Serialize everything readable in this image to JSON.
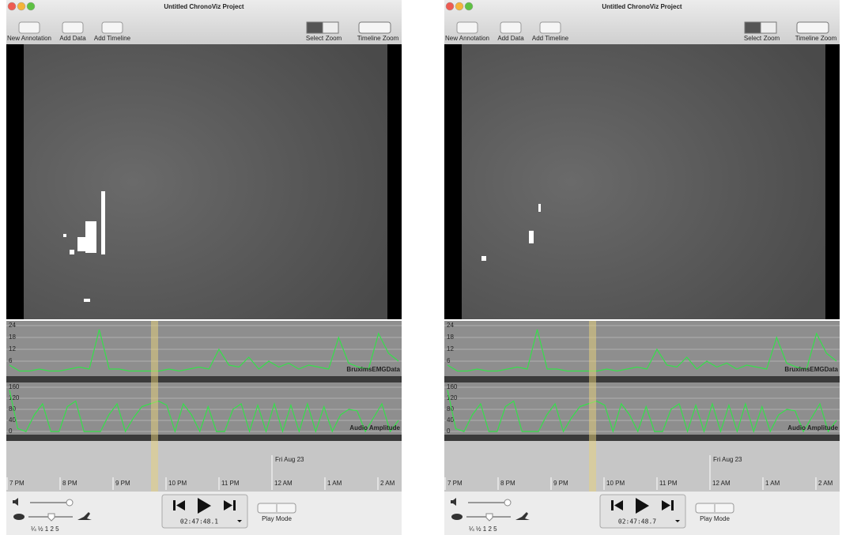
{
  "app": {
    "title": "Untitled ChronoViz Project",
    "toolbar": {
      "left": [
        "New Annotation",
        "Add Data",
        "Add Timeline"
      ],
      "right": [
        "Select",
        "Zoom",
        "Timeline Zoom"
      ]
    },
    "emg_track": {
      "name": "BruximsEMGData",
      "ylim": [
        0,
        24
      ],
      "yticks": [
        24,
        18,
        12,
        6
      ],
      "values": [
        4,
        1,
        1,
        2,
        1,
        1,
        2,
        3,
        2,
        22,
        2,
        2,
        1,
        1,
        1,
        1,
        2,
        1,
        2,
        3,
        2,
        12,
        4,
        3,
        8,
        2,
        6,
        3,
        5,
        2,
        4,
        3,
        2,
        18,
        5,
        3,
        2,
        20,
        10,
        6
      ]
    },
    "audio_track": {
      "name": "Audio Amplitude",
      "ylim": [
        0,
        160
      ],
      "yticks": [
        160,
        120,
        80,
        40,
        0
      ],
      "values": [
        150,
        10,
        0,
        60,
        100,
        0,
        0,
        90,
        110,
        0,
        0,
        0,
        60,
        100,
        0,
        50,
        90,
        100,
        110,
        95,
        0,
        100,
        60,
        0,
        90,
        0,
        0,
        80,
        100,
        0,
        95,
        0,
        100,
        0,
        95,
        0,
        100,
        0,
        90,
        0,
        60,
        80,
        75,
        0,
        50,
        100,
        0,
        40
      ]
    },
    "timeline": {
      "date": "Fri Aug 23",
      "hours": [
        "7 PM",
        "8 PM",
        "9 PM",
        "10 PM",
        "11 PM",
        "12 AM",
        "1 AM",
        "2 AM"
      ]
    },
    "speeds": "¼ ½ 1 2 5",
    "play_mode": "Play Mode"
  },
  "windows": [
    {
      "timecode": "02:47:48.1"
    },
    {
      "timecode": "02:47:48.7"
    }
  ]
}
